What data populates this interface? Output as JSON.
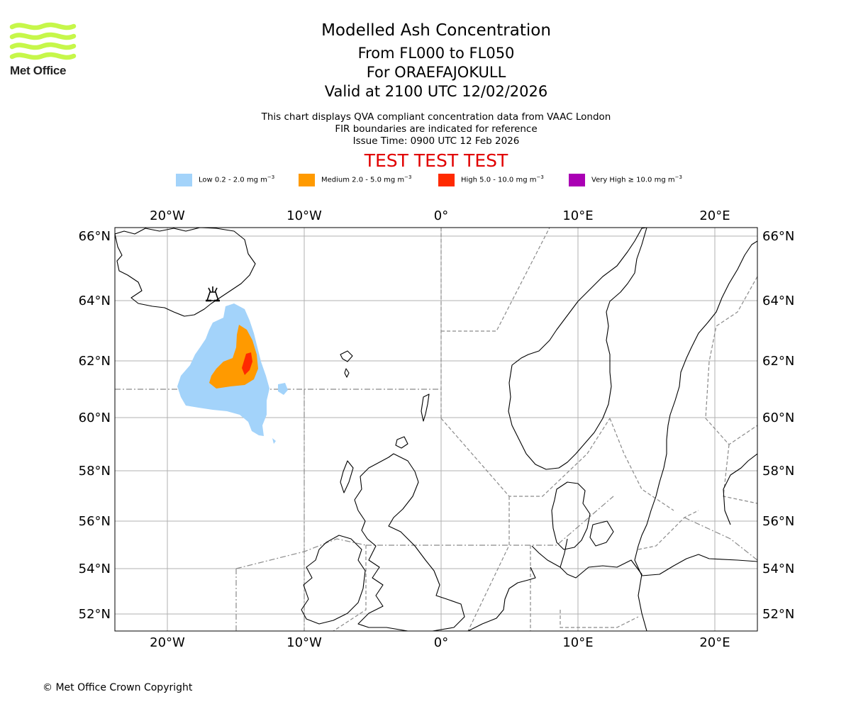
{
  "logo": {
    "text": "Met Office",
    "color": "#c6f74a"
  },
  "title": "Modelled Ash Concentration",
  "subtitle_lines": [
    "From FL000 to FL050",
    "For ORAEFAJOKULL",
    "Valid at 2100 UTC 12/02/2026"
  ],
  "notes": [
    "This chart displays QVA compliant concentration data from VAAC London",
    "FIR boundaries are indicated for reference",
    "Issue Time: 0900 UTC 12 Feb 2026"
  ],
  "test_banner": {
    "text": "TEST TEST TEST",
    "color": "#e10000"
  },
  "legend": [
    {
      "label": "Low 0.2 - 2.0 mg m",
      "color": "#a3d3fa"
    },
    {
      "label": "Medium 2.0 - 5.0 mg m",
      "color": "#ff9a00"
    },
    {
      "label": "High 5.0 - 10.0 mg m",
      "color": "#ff2a00"
    },
    {
      "label": "Very High ≥ 10.0 mg m",
      "color": "#aa00b4"
    }
  ],
  "legend_unit_exponent": "−3",
  "map": {
    "lon_ticks": [
      "20°W",
      "10°W",
      "0°",
      "10°E",
      "20°E"
    ],
    "lat_ticks": [
      "66°N",
      "64°N",
      "62°N",
      "60°N",
      "58°N",
      "56°N",
      "54°N",
      "52°N"
    ],
    "volcano_icon": "volcano-icon",
    "volcano_name": "ORAEFAJOKULL"
  },
  "copyright": "© Met Office Crown Copyright"
}
